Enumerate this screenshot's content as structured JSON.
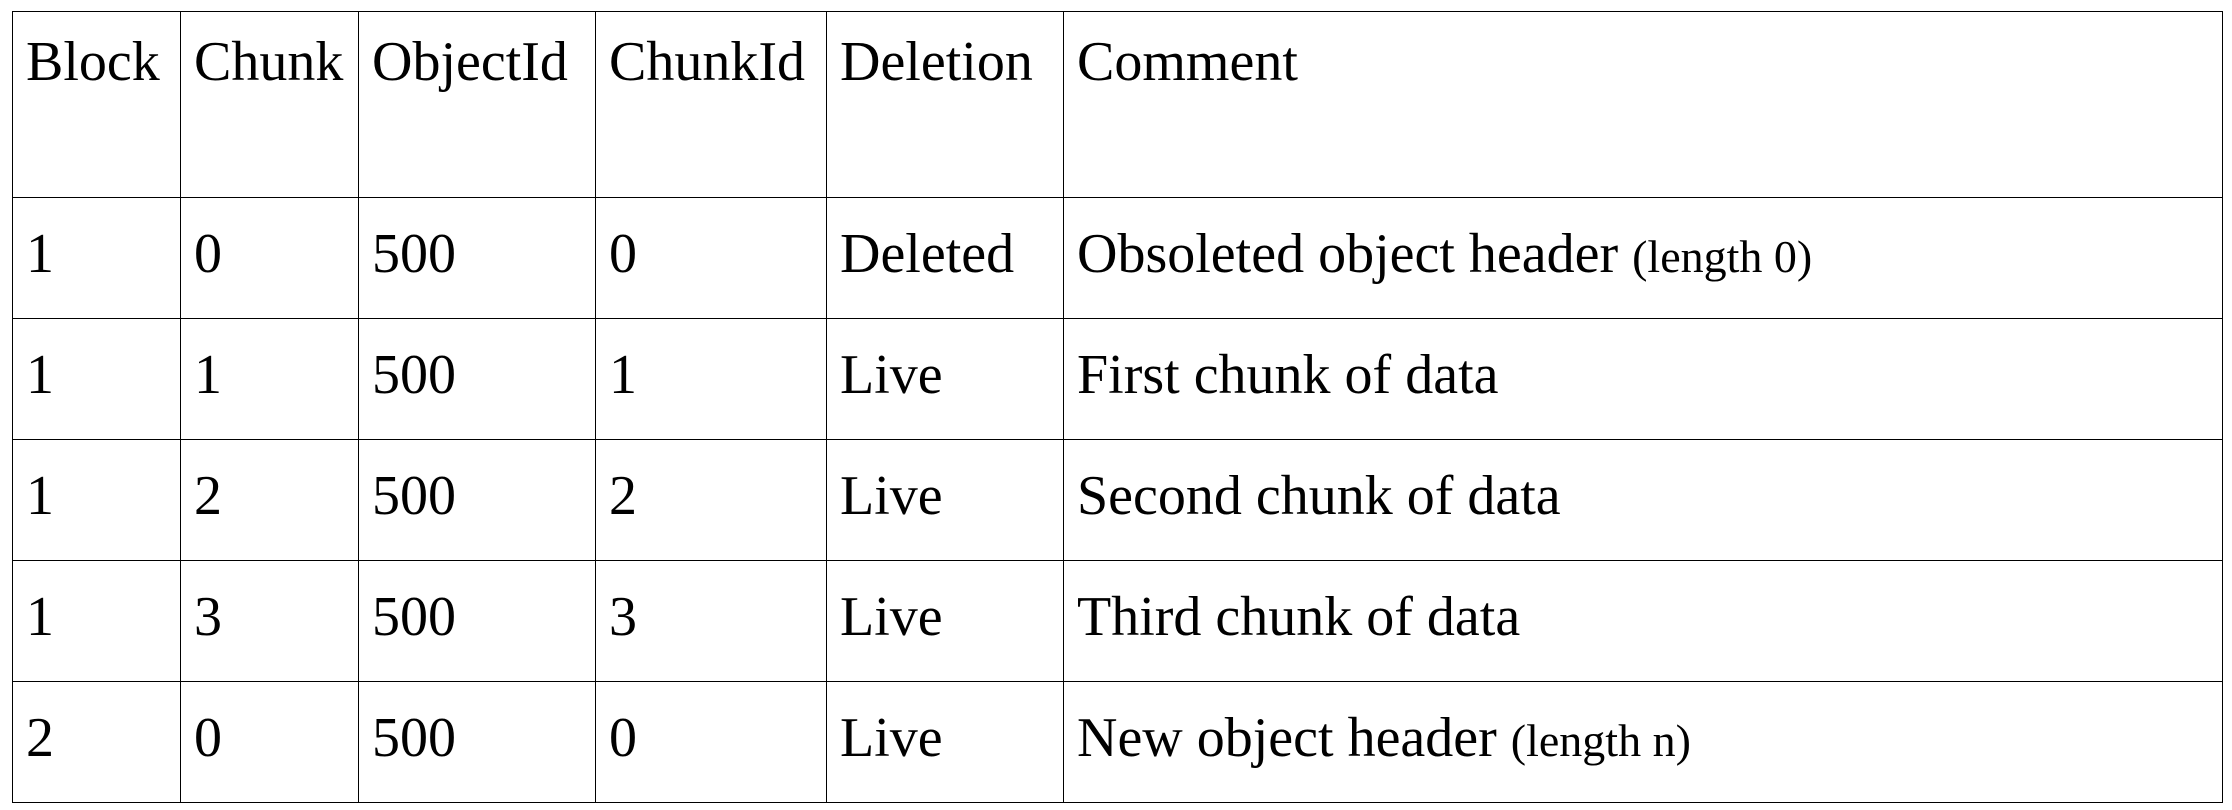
{
  "table": {
    "headers": [
      "Block",
      "Chunk",
      "ObjectId",
      "ChunkId",
      "Deletion",
      "Comment"
    ],
    "rows": [
      {
        "block": "1",
        "chunk": "0",
        "object_id": "500",
        "chunk_id": "0",
        "deletion": "Deleted",
        "comment": "Obsoleted object header",
        "note": "(length 0)"
      },
      {
        "block": "1",
        "chunk": "1",
        "object_id": "500",
        "chunk_id": "1",
        "deletion": "Live",
        "comment": "First chunk of data",
        "note": ""
      },
      {
        "block": "1",
        "chunk": "2",
        "object_id": "500",
        "chunk_id": "2",
        "deletion": "Live",
        "comment": "Second chunk of data",
        "note": ""
      },
      {
        "block": "1",
        "chunk": "3",
        "object_id": "500",
        "chunk_id": "3",
        "deletion": "Live",
        "comment": "Third chunk of data",
        "note": ""
      },
      {
        "block": "2",
        "chunk": "0",
        "object_id": "500",
        "chunk_id": "0",
        "deletion": "Live",
        "comment": "New object header",
        "note": "(length n)"
      }
    ]
  }
}
